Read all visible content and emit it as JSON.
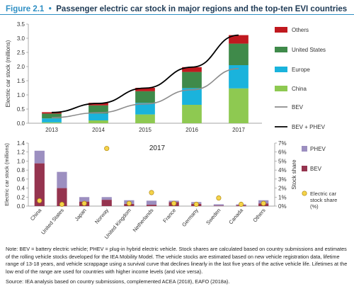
{
  "figure": {
    "label": "Figure 2.1",
    "bullet": "•",
    "title": "Passenger electric car stock in major regions and the top-ten EVI countries"
  },
  "colors": {
    "others": "#c0191f",
    "united_states": "#3f8a4a",
    "europe": "#1ab3dc",
    "china": "#8ec951",
    "bev_line": "#8c8c8c",
    "bev_phev_line": "#000000",
    "phev_bar": "#9c8fc0",
    "bev_bar": "#95344f",
    "stock_share_marker": "#f5d34a",
    "stock_share_marker_edge": "#b08a12",
    "accent": "#2e8fc4"
  },
  "chart_data": [
    {
      "type": "bar",
      "stacked": true,
      "categories": [
        "2013",
        "2014",
        "2015",
        "2016",
        "2017"
      ],
      "series": [
        {
          "name": "China",
          "values": [
            0.03,
            0.1,
            0.31,
            0.65,
            1.23
          ]
        },
        {
          "name": "Europe",
          "values": [
            0.14,
            0.24,
            0.41,
            0.59,
            0.82
          ]
        },
        {
          "name": "United States",
          "values": [
            0.17,
            0.29,
            0.41,
            0.57,
            0.76
          ]
        },
        {
          "name": "Others",
          "values": [
            0.05,
            0.09,
            0.12,
            0.17,
            0.3
          ]
        }
      ],
      "lines": [
        {
          "name": "BEV",
          "values": [
            0.2,
            0.37,
            0.68,
            1.18,
            1.93
          ]
        },
        {
          "name": "BEV + PHEV",
          "values": [
            0.38,
            0.7,
            1.24,
            1.98,
            3.11
          ]
        }
      ],
      "legend_order": [
        "Others",
        "United States",
        "Europe",
        "China",
        "BEV",
        "BEV + PHEV"
      ],
      "ylabel": "Electric car stock (millions)",
      "ylim": [
        0,
        3.5
      ],
      "yticks": [
        "0.0",
        "0.5",
        "1.0",
        "1.5",
        "2.0",
        "2.5",
        "3.0",
        "3.5"
      ],
      "legend_position": "right"
    },
    {
      "type": "bar",
      "stacked": true,
      "title": "2017",
      "categories": [
        "China",
        "United States",
        "Japan",
        "Norway",
        "United Kingdom",
        "Netherlands",
        "France",
        "Germany",
        "Sweden",
        "Canada",
        "Others"
      ],
      "series": [
        {
          "name": "BEV",
          "values": [
            0.95,
            0.4,
            0.1,
            0.14,
            0.05,
            0.03,
            0.09,
            0.05,
            0.01,
            0.02,
            0.06
          ]
        },
        {
          "name": "PHEV",
          "values": [
            0.28,
            0.36,
            0.1,
            0.06,
            0.08,
            0.09,
            0.03,
            0.04,
            0.03,
            0.02,
            0.07
          ]
        }
      ],
      "stock_share": {
        "name": "Electric car stock share (%)",
        "values": [
          0.6,
          0.2,
          0.3,
          6.4,
          0.3,
          1.5,
          0.3,
          0.2,
          0.9,
          0.2,
          0.3
        ]
      },
      "ylabel": "Electric car stock (millions)",
      "ylim": [
        0,
        1.4
      ],
      "yticks": [
        "0.0",
        "0.2",
        "0.4",
        "0.6",
        "0.8",
        "1.0",
        "1.2",
        "1.4"
      ],
      "y2label": "Stock share",
      "y2lim": [
        0,
        7
      ],
      "y2ticks": [
        "0%",
        "1%",
        "2%",
        "3%",
        "4%",
        "5%",
        "6%",
        "7%"
      ],
      "legend_order": [
        "PHEV",
        "BEV",
        "Electric car stock share (%)"
      ],
      "legend_position": "right"
    }
  ],
  "notes": {
    "text": "Note: BEV = battery electric vehicle; PHEV = plug-in hybrid electric vehicle. Stock shares are calculated based on country submissions and estimates of the rolling vehicle stocks developed for the IEA Mobility Model. The vehicle stocks are estimated based on new vehicle registration data, lifetime range of 13-18 years, and vehicle scrappage using a survival curve that declines linearly in the last five years of the active vehicle life. Lifetimes at the low end of the range are used for countries with higher income levels (and vice versa).",
    "source": "Source: IEA analysis based on country submissions, complemented ACEA (2018), EAFO (2018a)."
  }
}
